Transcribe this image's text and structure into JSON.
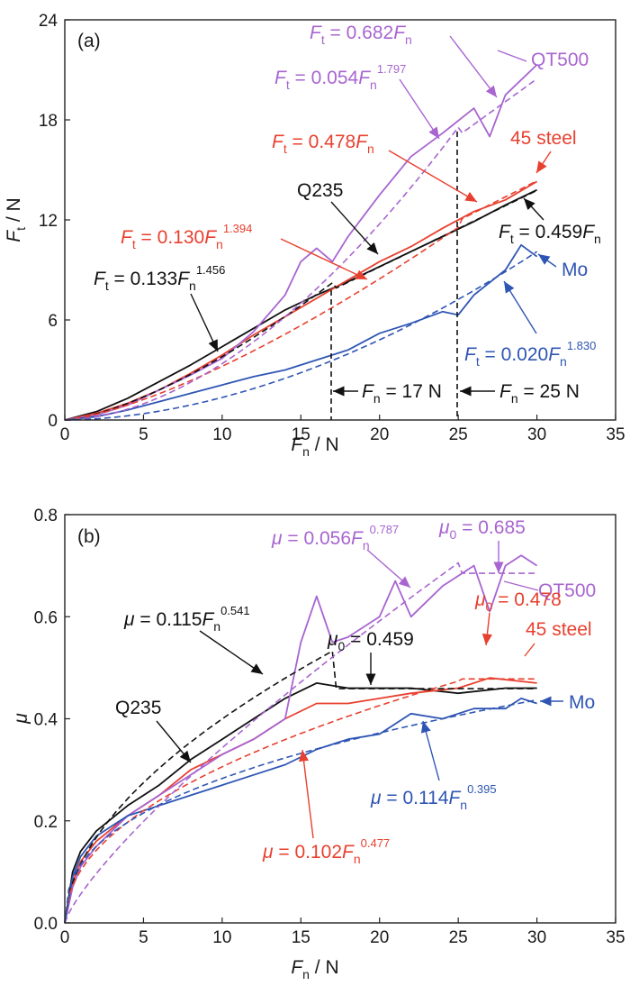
{
  "colors": {
    "Q235": "#111111",
    "45 steel": "#e8402f",
    "QT500": "#a865d0",
    "Mo": "#2f55b4"
  },
  "chart_data": [
    {
      "type": "line",
      "panel": "(a)",
      "xlabel": "F_n / N",
      "ylabel": "F_t / N",
      "xlim": [
        0,
        35
      ],
      "ylim": [
        0,
        24
      ],
      "xticks": [
        0,
        5,
        10,
        15,
        20,
        25,
        30,
        35
      ],
      "yticks": [
        0,
        6,
        12,
        18,
        24
      ],
      "xtick_labels": [
        "0",
        "5",
        "10",
        "15",
        "20",
        "25",
        "30",
        "35"
      ],
      "ytick_labels": [
        "0",
        "6",
        "12",
        "18",
        "24"
      ],
      "series": [
        {
          "name": "Q235",
          "x": [
            0,
            2,
            4,
            6,
            8,
            10,
            12,
            14,
            16,
            17,
            18,
            20,
            22,
            24,
            26,
            28,
            30
          ],
          "y": [
            0,
            0.5,
            1.3,
            2.3,
            3.3,
            4.4,
            5.5,
            6.6,
            7.5,
            7.9,
            8.3,
            9.2,
            10.1,
            11.0,
            11.9,
            12.9,
            13.8
          ],
          "fit": "Ft = 0.133Fn^1.456 (0-17 N); Ft = 0.459Fn (>17 N)"
        },
        {
          "name": "45 steel",
          "x": [
            0,
            2,
            4,
            6,
            8,
            10,
            12,
            14,
            16,
            18,
            20,
            22,
            24,
            26,
            28,
            30
          ],
          "y": [
            0,
            0.4,
            1.0,
            1.8,
            2.8,
            3.9,
            5.1,
            6.2,
            7.3,
            8.4,
            9.5,
            10.4,
            11.5,
            12.5,
            13.2,
            14.3
          ],
          "fit": "Ft = 0.130Fn^1.394 (0-25 N); Ft = 0.478Fn (>25 N)"
        },
        {
          "name": "QT500",
          "x": [
            0,
            2,
            4,
            6,
            8,
            10,
            12,
            14,
            15,
            16,
            17,
            18,
            20,
            22,
            24,
            26,
            27,
            28,
            30
          ],
          "y": [
            0,
            0.3,
            0.9,
            1.8,
            2.7,
            3.7,
            5.3,
            7.5,
            9.5,
            10.3,
            9.5,
            11.0,
            13.5,
            15.8,
            17.2,
            18.7,
            17.0,
            19.5,
            21.3
          ],
          "fit": "Ft = 0.054Fn^1.797 (0-25 N); Ft = 0.682Fn (>25 N)"
        },
        {
          "name": "Mo",
          "x": [
            0,
            2,
            4,
            6,
            8,
            10,
            12,
            14,
            16,
            18,
            20,
            22,
            24,
            25,
            26,
            28,
            29,
            30
          ],
          "y": [
            0,
            0.2,
            0.6,
            1.1,
            1.6,
            2.1,
            2.6,
            3.0,
            3.6,
            4.2,
            5.2,
            5.8,
            6.5,
            6.3,
            7.5,
            9.0,
            10.5,
            9.8
          ],
          "fit": "Ft = 0.020Fn^1.830"
        }
      ],
      "reference_lines": [
        {
          "x": 17,
          "label": "F_n = 17 N"
        },
        {
          "x": 25,
          "label": "F_n = 25 N"
        }
      ]
    },
    {
      "type": "line",
      "panel": "(b)",
      "xlabel": "F_n / N",
      "ylabel": "μ",
      "xlim": [
        0,
        35
      ],
      "ylim": [
        0,
        0.8
      ],
      "xticks": [
        0,
        5,
        10,
        15,
        20,
        25,
        30,
        35
      ],
      "yticks": [
        0,
        0.2,
        0.4,
        0.6,
        0.8
      ],
      "xtick_labels": [
        "0",
        "5",
        "10",
        "15",
        "20",
        "25",
        "30",
        "35"
      ],
      "ytick_labels": [
        "0.0",
        "0.2",
        "0.4",
        "0.6",
        "0.8"
      ],
      "series": [
        {
          "name": "Q235",
          "x": [
            0,
            0.5,
            1,
            2,
            4,
            6,
            8,
            10,
            12,
            14,
            16,
            18,
            20,
            22,
            25,
            28,
            30
          ],
          "y": [
            0,
            0.1,
            0.14,
            0.18,
            0.23,
            0.27,
            0.32,
            0.36,
            0.4,
            0.44,
            0.47,
            0.46,
            0.46,
            0.46,
            0.45,
            0.46,
            0.46
          ]
        },
        {
          "name": "45 steel",
          "x": [
            0,
            0.5,
            1,
            2,
            4,
            6,
            8,
            10,
            12,
            14,
            16,
            18,
            20,
            22,
            25,
            27,
            30
          ],
          "y": [
            0,
            0.08,
            0.12,
            0.16,
            0.21,
            0.25,
            0.3,
            0.33,
            0.36,
            0.4,
            0.43,
            0.43,
            0.44,
            0.45,
            0.46,
            0.48,
            0.47
          ]
        },
        {
          "name": "QT500",
          "x": [
            0,
            0.5,
            1,
            2,
            4,
            6,
            8,
            10,
            12,
            14,
            15,
            16,
            17,
            18,
            20,
            21,
            22,
            24,
            26,
            27,
            28,
            29,
            30
          ],
          "y": [
            0,
            0.07,
            0.11,
            0.15,
            0.21,
            0.25,
            0.29,
            0.33,
            0.36,
            0.4,
            0.55,
            0.64,
            0.55,
            0.56,
            0.6,
            0.67,
            0.6,
            0.66,
            0.7,
            0.61,
            0.7,
            0.72,
            0.7
          ]
        },
        {
          "name": "Mo",
          "x": [
            0,
            0.5,
            1,
            2,
            4,
            6,
            8,
            10,
            12,
            14,
            16,
            18,
            20,
            22,
            24,
            26,
            28,
            29,
            30
          ],
          "y": [
            0,
            0.09,
            0.13,
            0.17,
            0.21,
            0.23,
            0.25,
            0.27,
            0.29,
            0.31,
            0.34,
            0.36,
            0.37,
            0.41,
            0.4,
            0.42,
            0.42,
            0.44,
            0.43
          ]
        }
      ]
    }
  ],
  "panel_a": {
    "panel_label": "(a)",
    "ylabel_main": "F",
    "ylabel_sub": "t",
    "ylabel_unit": " / N",
    "xlabel_main": "F",
    "xlabel_sub": "n",
    "xlabel_unit": " / N",
    "yticks": [
      "0",
      "6",
      "12",
      "18",
      "24"
    ],
    "xticks": [
      "0",
      "5",
      "10",
      "15",
      "20",
      "25",
      "30",
      "35"
    ],
    "ann_qt500_name": "QT500",
    "ann_45_name": "45 steel",
    "ann_q235_name": "Q235",
    "ann_mo_name": "Mo",
    "f_main": "F",
    "sub_t": "t",
    "sub_n": "n",
    "eq_qt500_lin": " = 0.682",
    "eq_qt500_pow": " = 0.054",
    "exp_qt500": "1.797",
    "eq_45_lin": " = 0.478",
    "eq_45_pow": " = 0.130",
    "exp_45": "1.394",
    "eq_q235_pow": " = 0.133",
    "exp_q235": "1.456",
    "eq_q235_lin": " = 0.459",
    "eq_mo_pow": " = 0.020",
    "exp_mo": "1.830",
    "ref17": " = 17 N",
    "ref25": " = 25 N"
  },
  "panel_b": {
    "panel_label": "(b)",
    "ylabel": "μ",
    "xlabel_main": "F",
    "xlabel_sub": "n",
    "xlabel_unit": " / N",
    "yticks": [
      "0.0",
      "0.2",
      "0.4",
      "0.6",
      "0.8"
    ],
    "xticks": [
      "0",
      "5",
      "10",
      "15",
      "20",
      "25",
      "30",
      "35"
    ],
    "mu": "μ",
    "sub_0": "0",
    "sub_n": "n",
    "f_main": "F",
    "eq_qt500": " = 0.056",
    "exp_qt500": "0.787",
    "mu0_qt500": " = 0.685",
    "ann_qt500_name": "QT500",
    "mu0_45": " = 0.478",
    "ann_45_name": "45 steel",
    "eq_q235": " = 0.115",
    "exp_q235": "0.541",
    "mu0_q235": " = 0.459",
    "ann_q235_name": "Q235",
    "ann_mo_name": "Mo",
    "eq_mo": " = 0.114",
    "exp_mo": "0.395",
    "eq_45": " = 0.102",
    "exp_45": "0.477"
  }
}
